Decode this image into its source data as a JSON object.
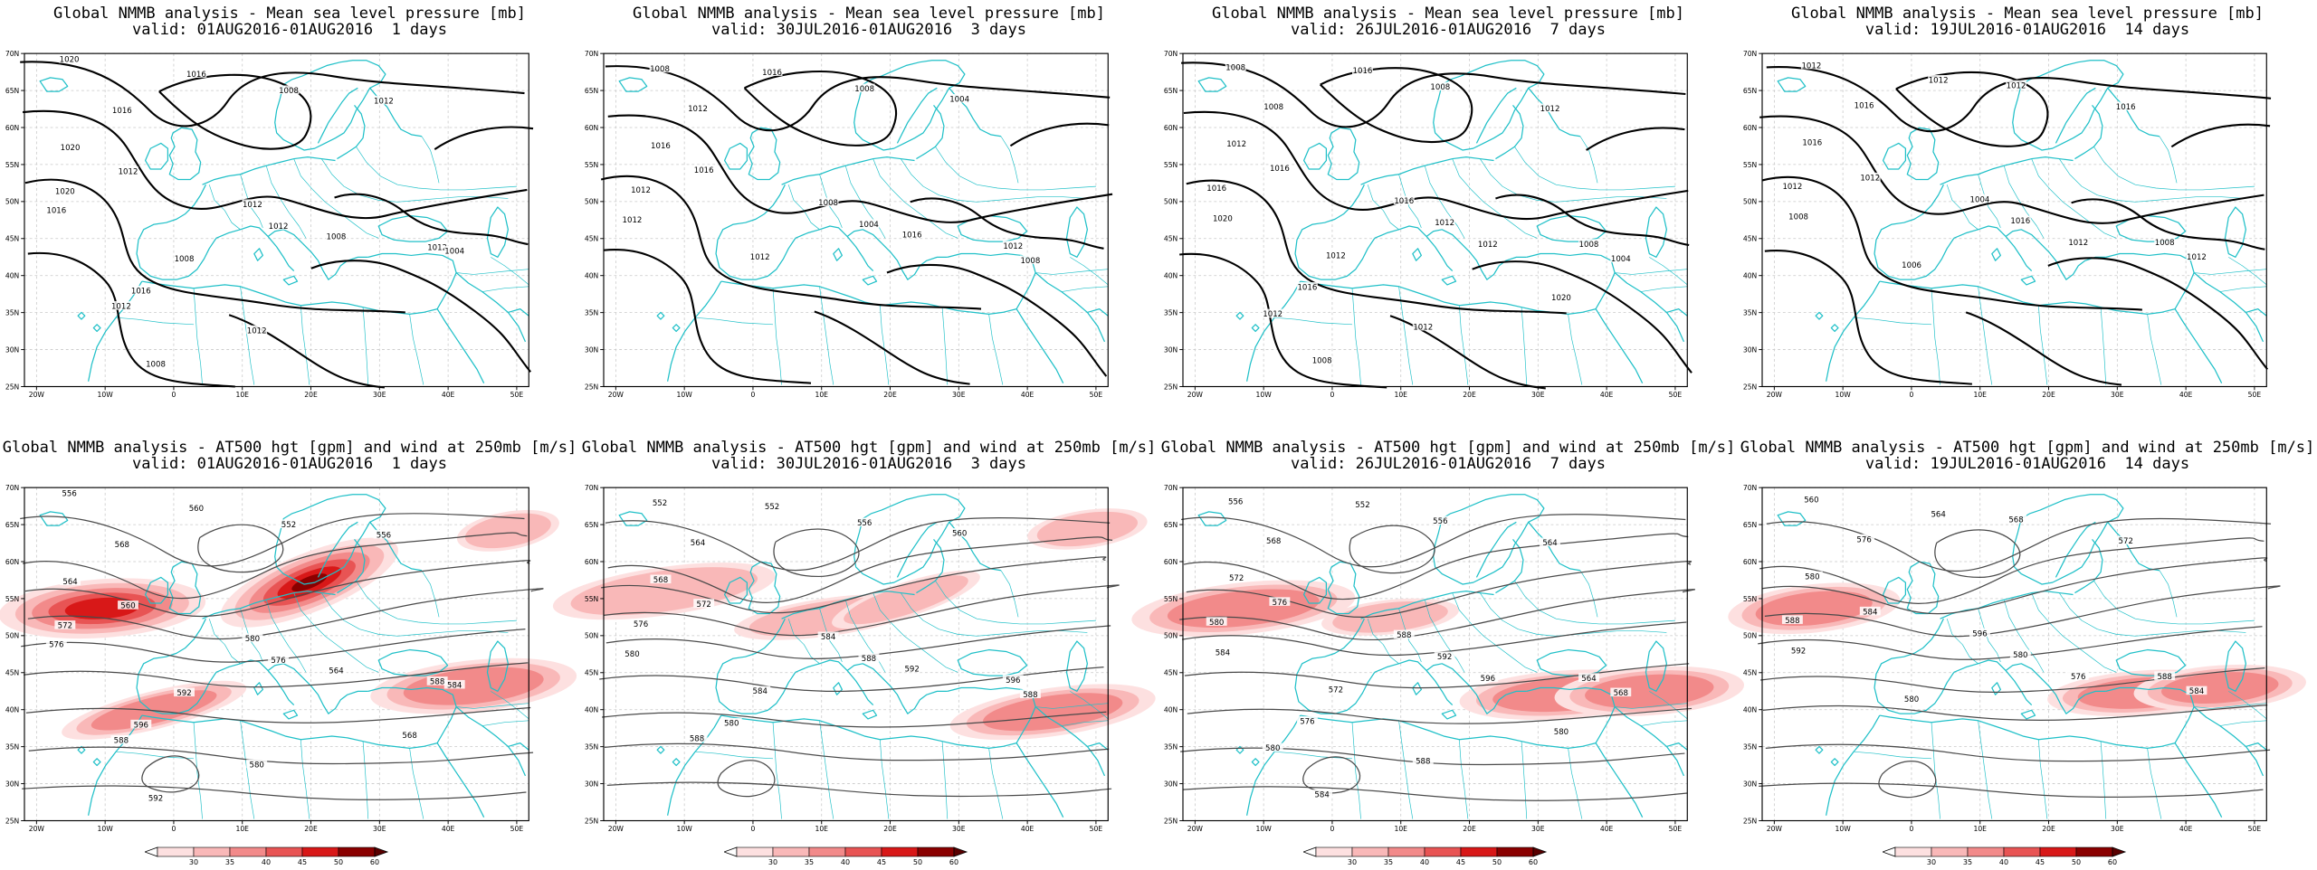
{
  "colors": {
    "coast": "#20c0c8",
    "isobar": "#000000",
    "height_contour": "#4a4a4a",
    "grid": "#c8c8c8",
    "wind_shades": [
      "#fde0e0",
      "#f9b8b8",
      "#f28a8a",
      "#e85454",
      "#d81818",
      "#8a0000"
    ]
  },
  "lon_ticks": [
    "20W",
    "10W",
    "0",
    "10E",
    "20E",
    "30E",
    "40E",
    "50E"
  ],
  "lat_ticks": [
    "70N",
    "65N",
    "60N",
    "55N",
    "50N",
    "45N",
    "40N",
    "35N",
    "30N",
    "25N"
  ],
  "colorbar_ticks": [
    "30",
    "35",
    "40",
    "45",
    "50",
    "60"
  ],
  "panels": [
    {
      "row": "mslp",
      "col": 0,
      "title": "Global NMMB analysis - Mean sea level pressure [mb]",
      "subtitle": "valid: 01AUG2016-01AUG2016  1 days",
      "contour_labels": [
        "1020",
        "1016",
        "1008",
        "1012",
        "1016",
        "1020",
        "1012",
        "1020",
        "1016",
        "1012",
        "1012",
        "1008",
        "1012",
        "1004",
        "1008",
        "1016",
        "1012",
        "1008",
        "1012"
      ]
    },
    {
      "row": "mslp",
      "col": 1,
      "title": "Global NMMB analysis - Mean sea level pressure [mb]",
      "subtitle": "valid: 30JUL2016-01AUG2016  3 days",
      "contour_labels": [
        "1008",
        "1016",
        "1008",
        "1004",
        "1012",
        "1016",
        "1016",
        "1012",
        "1012",
        "1008",
        "1004",
        "1016",
        "1012",
        "1008",
        "1012"
      ]
    },
    {
      "row": "mslp",
      "col": 2,
      "title": "Global NMMB analysis - Mean sea level pressure [mb]",
      "subtitle": "valid: 26JUL2016-01AUG2016  7 days",
      "contour_labels": [
        "1008",
        "1016",
        "1008",
        "1012",
        "1008",
        "1012",
        "1016",
        "1016",
        "1020",
        "1016",
        "1012",
        "1012",
        "1008",
        "1004",
        "1012",
        "1016",
        "1012",
        "1008",
        "1012",
        "1020"
      ]
    },
    {
      "row": "mslp",
      "col": 3,
      "title": "Global NMMB analysis - Mean sea level pressure [mb]",
      "subtitle": "valid: 19JUL2016-01AUG2016  14 days",
      "contour_labels": [
        "1012",
        "1012",
        "1012",
        "1016",
        "1016",
        "1016",
        "1012",
        "1012",
        "1008",
        "1004",
        "1016",
        "1012",
        "1008",
        "1012",
        "1006"
      ]
    },
    {
      "row": "z500",
      "col": 0,
      "title": "Global NMMB analysis - AT500 hgt [gpm] and wind at 250mb [m/s]",
      "subtitle": "valid: 01AUG2016-01AUG2016  1 days",
      "contour_labels": [
        "556",
        "560",
        "552",
        "556",
        "568",
        "564",
        "560",
        "572",
        "576",
        "580",
        "576",
        "564",
        "588",
        "584",
        "592",
        "596",
        "588",
        "592",
        "580",
        "568"
      ]
    },
    {
      "row": "z500",
      "col": 1,
      "title": "Global NMMB analysis - AT500 hgt [gpm] and wind at 250mb [m/s]",
      "subtitle": "valid: 30JUL2016-01AUG2016  3 days",
      "contour_labels": [
        "552",
        "552",
        "556",
        "560",
        "564",
        "568",
        "572",
        "576",
        "580",
        "584",
        "588",
        "592",
        "596",
        "588",
        "584",
        "580",
        "588"
      ]
    },
    {
      "row": "z500",
      "col": 2,
      "title": "Global NMMB analysis - AT500 hgt [gpm] and wind at 250mb [m/s]",
      "subtitle": "valid: 26JUL2016-01AUG2016  7 days",
      "contour_labels": [
        "556",
        "552",
        "556",
        "564",
        "568",
        "572",
        "576",
        "580",
        "584",
        "588",
        "592",
        "596",
        "564",
        "568",
        "572",
        "576",
        "580",
        "584",
        "588",
        "580"
      ]
    },
    {
      "row": "z500",
      "col": 3,
      "title": "Global NMMB analysis - AT500 hgt [gpm] and wind at 250mb [m/s]",
      "subtitle": "valid: 19JUL2016-01AUG2016  14 days",
      "contour_labels": [
        "560",
        "564",
        "568",
        "572",
        "576",
        "580",
        "584",
        "588",
        "592",
        "596",
        "580",
        "576",
        "588",
        "584",
        "580"
      ]
    }
  ]
}
